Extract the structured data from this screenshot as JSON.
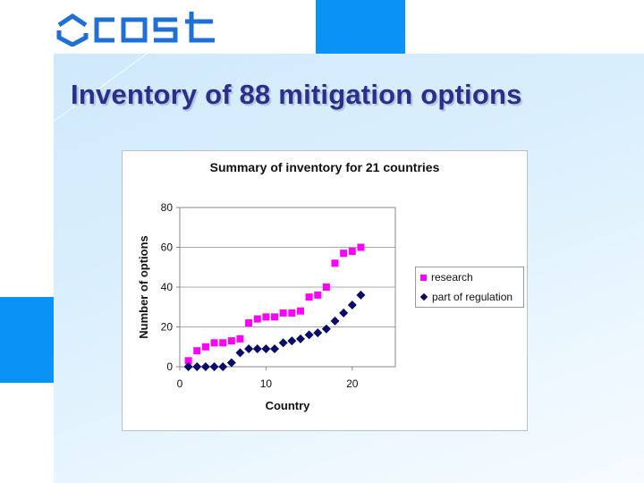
{
  "logo": {
    "text": "cost",
    "color": "#1f6fd6"
  },
  "slide": {
    "title": "Inventory of 88 mitigation options",
    "accent_color": "#0a93f5",
    "title_color": "#2b2f8c"
  },
  "chart_data": {
    "type": "scatter",
    "title": "Summary of inventory for 21 countries",
    "xlabel": "Country",
    "ylabel": "Number of options",
    "xlim": [
      0,
      25
    ],
    "ylim": [
      0,
      80
    ],
    "xticks": [
      0,
      10,
      20
    ],
    "yticks": [
      0,
      20,
      40,
      60,
      80
    ],
    "grid": "horizontal",
    "legend_position": "right",
    "x": [
      1,
      2,
      3,
      4,
      5,
      6,
      7,
      8,
      9,
      10,
      11,
      12,
      13,
      14,
      15,
      16,
      17,
      18,
      19,
      20,
      21
    ],
    "series": [
      {
        "name": "research",
        "marker": "square",
        "color": "#ff00ff",
        "values": [
          3,
          8,
          10,
          12,
          12,
          13,
          14,
          22,
          24,
          25,
          25,
          27,
          27,
          28,
          35,
          36,
          40,
          52,
          57,
          58,
          60
        ]
      },
      {
        "name": "part of regulation",
        "marker": "diamond",
        "color": "#0a0a6b",
        "values": [
          0,
          0,
          0,
          0,
          0,
          2,
          7,
          9,
          9,
          9,
          9,
          12,
          13,
          14,
          16,
          17,
          19,
          23,
          27,
          31,
          36
        ]
      }
    ]
  }
}
